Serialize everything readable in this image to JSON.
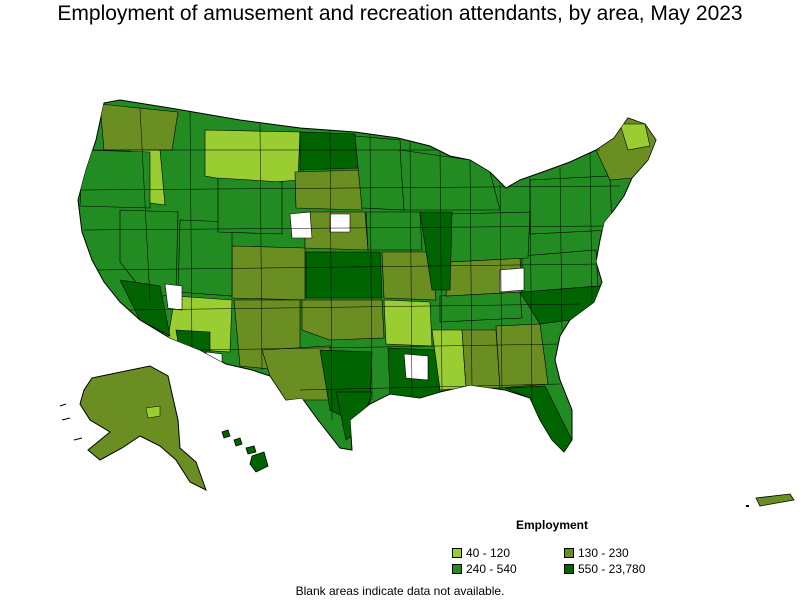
{
  "title": "Employment of amusement and recreation attendants, by area, May 2023",
  "legend": {
    "title": "Employment",
    "items": [
      {
        "label": "40 - 120",
        "color": "#9acd32"
      },
      {
        "label": "130 - 230",
        "color": "#6b8e23"
      },
      {
        "label": "240 - 540",
        "color": "#228b22"
      },
      {
        "label": "550 - 23,780",
        "color": "#006400"
      }
    ]
  },
  "note": "Blank areas indicate data not available.",
  "colors": {
    "blank": "#ffffff",
    "border": "#000000"
  }
}
